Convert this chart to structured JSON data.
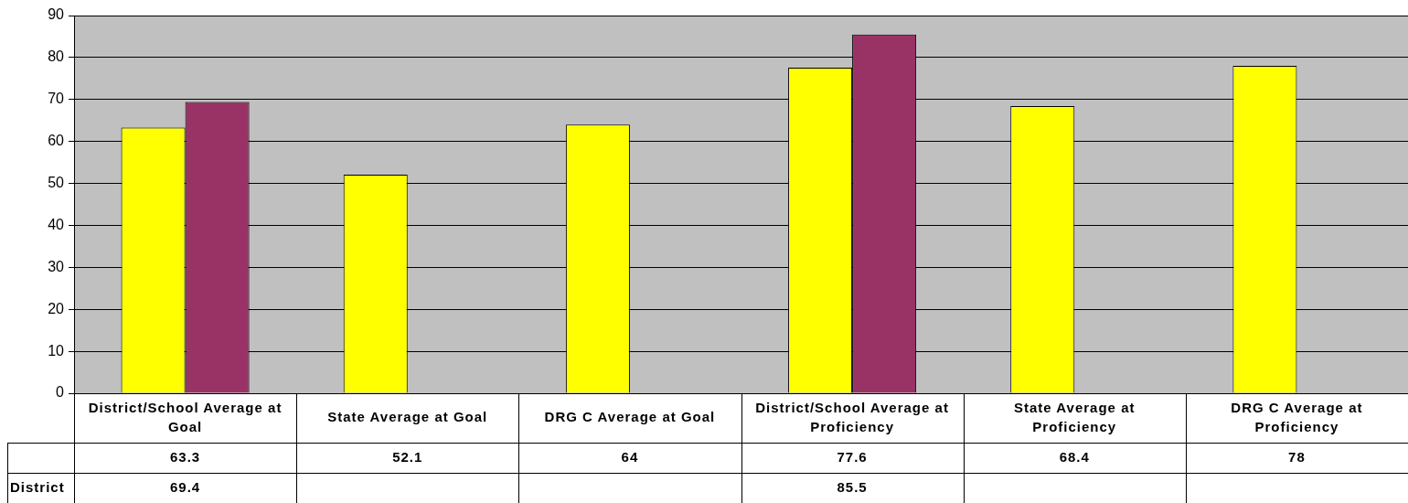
{
  "chart_data": {
    "type": "bar",
    "categories": [
      "District/School Average at Goal",
      "State Average at Goal",
      "DRG C Average at Goal",
      "District/School Average at Proficiency",
      "State Average at Proficiency",
      "DRG C Average at Proficiency"
    ],
    "series": [
      {
        "color": "#ffff00",
        "values": [
          63.3,
          52.1,
          64,
          77.6,
          68.4,
          78
        ]
      },
      {
        "name": "District",
        "color": "#993366",
        "values": [
          69.4,
          null,
          null,
          85.5,
          null,
          null
        ]
      }
    ],
    "ylim": [
      0,
      90
    ],
    "yticks": [
      0,
      10,
      20,
      30,
      40,
      50,
      60,
      70,
      80,
      90
    ],
    "grid": "y",
    "data_labels": true
  }
}
